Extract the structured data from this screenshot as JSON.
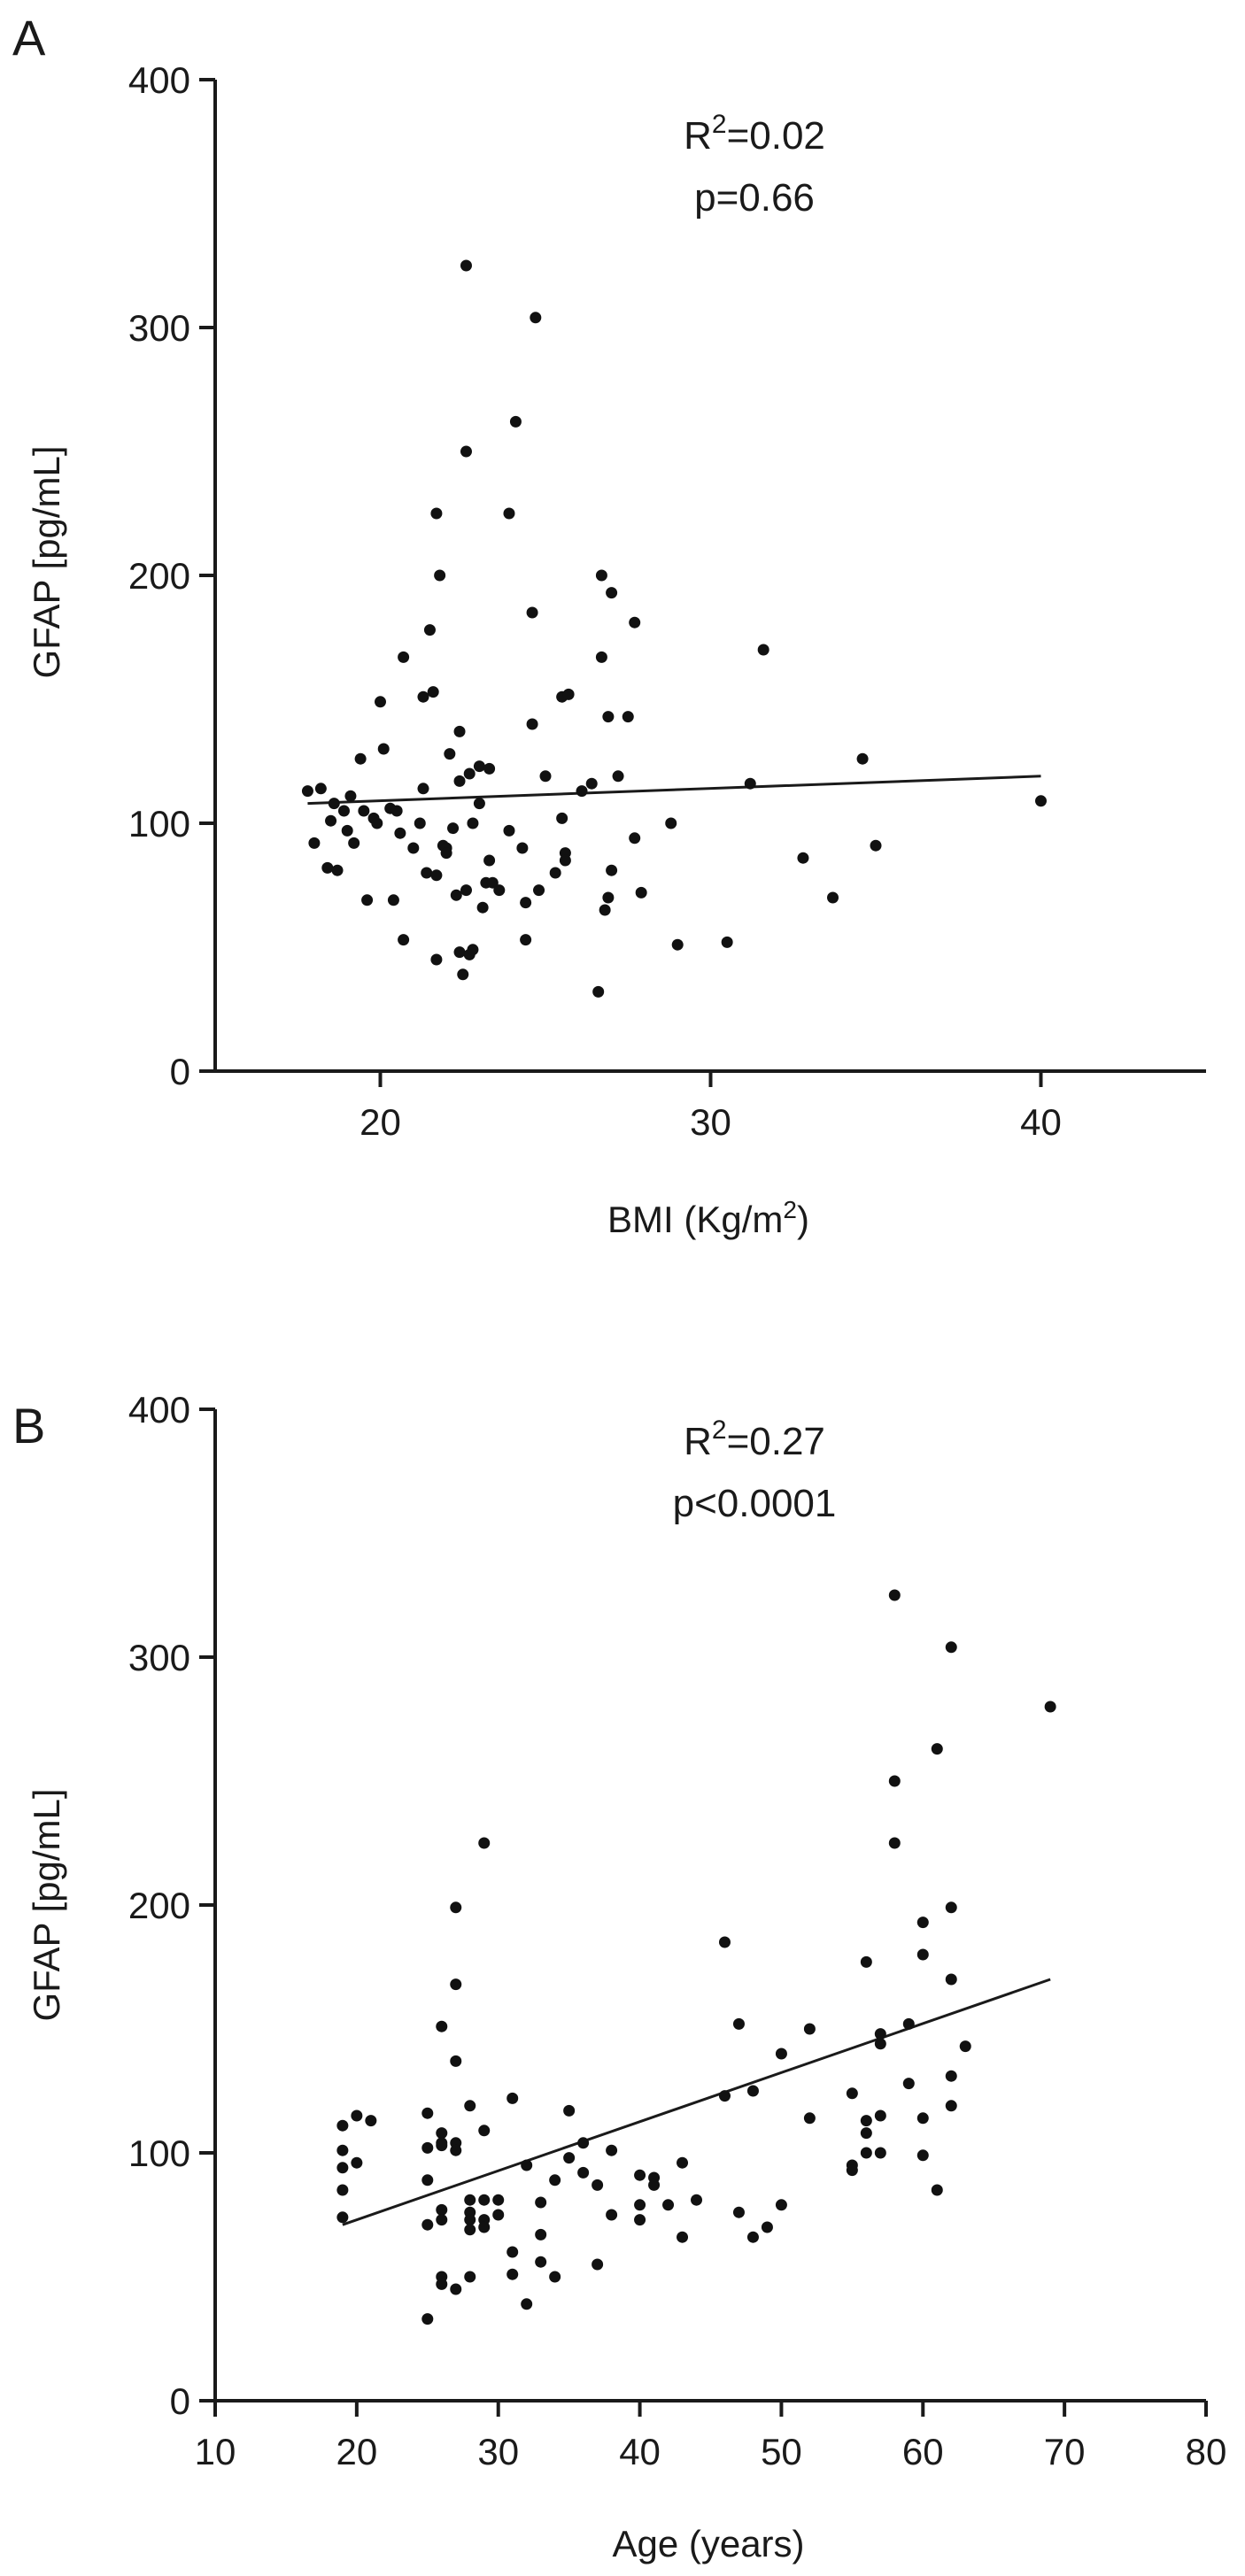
{
  "chart_data": [
    {
      "type": "scatter",
      "panel_label": "A",
      "xlabel": "BMI (Kg/m",
      "xlabel_sup": "2",
      "xlabel_suffix": ")",
      "ylabel": "GFAP [pg/mL]",
      "xlim": [
        15,
        45
      ],
      "ylim": [
        0,
        400
      ],
      "xticks": [
        20,
        30,
        40
      ],
      "yticks": [
        0,
        100,
        200,
        300,
        400
      ],
      "stat_r2_prefix": "R",
      "stat_r2_sup": "2",
      "stat_r2_value": "=0.02",
      "stat_p": "p=0.66",
      "fit_line": {
        "x": [
          17.8,
          40.0
        ],
        "y": [
          108,
          119
        ]
      },
      "points": [
        [
          17.8,
          113
        ],
        [
          18.2,
          114
        ],
        [
          18.0,
          92
        ],
        [
          18.5,
          101
        ],
        [
          18.4,
          82
        ],
        [
          18.7,
          81
        ],
        [
          18.6,
          108
        ],
        [
          18.9,
          105
        ],
        [
          19.0,
          97
        ],
        [
          19.1,
          111
        ],
        [
          19.2,
          92
        ],
        [
          19.4,
          126
        ],
        [
          19.5,
          105
        ],
        [
          19.6,
          69
        ],
        [
          19.8,
          102
        ],
        [
          19.9,
          100
        ],
        [
          20.0,
          149
        ],
        [
          20.1,
          130
        ],
        [
          20.3,
          106
        ],
        [
          20.4,
          69
        ],
        [
          20.5,
          105
        ],
        [
          20.6,
          96
        ],
        [
          20.7,
          53
        ],
        [
          20.7,
          167
        ],
        [
          21.0,
          90
        ],
        [
          21.2,
          100
        ],
        [
          21.3,
          151
        ],
        [
          21.3,
          114
        ],
        [
          21.4,
          80
        ],
        [
          21.5,
          178
        ],
        [
          21.6,
          153
        ],
        [
          21.7,
          225
        ],
        [
          21.7,
          45
        ],
        [
          21.7,
          79
        ],
        [
          21.8,
          200
        ],
        [
          21.9,
          91
        ],
        [
          22.0,
          90
        ],
        [
          22.0,
          88
        ],
        [
          22.1,
          128
        ],
        [
          22.2,
          98
        ],
        [
          22.3,
          71
        ],
        [
          22.4,
          48
        ],
        [
          22.4,
          117
        ],
        [
          22.4,
          137
        ],
        [
          22.5,
          39
        ],
        [
          22.6,
          325
        ],
        [
          22.6,
          250
        ],
        [
          22.6,
          73
        ],
        [
          22.7,
          47
        ],
        [
          22.7,
          120
        ],
        [
          22.8,
          49
        ],
        [
          22.8,
          100
        ],
        [
          23.0,
          123
        ],
        [
          23.0,
          108
        ],
        [
          23.1,
          66
        ],
        [
          23.2,
          76
        ],
        [
          23.3,
          122
        ],
        [
          23.3,
          85
        ],
        [
          23.4,
          76
        ],
        [
          23.6,
          73
        ],
        [
          23.9,
          225
        ],
        [
          23.9,
          97
        ],
        [
          24.1,
          262
        ],
        [
          24.3,
          90
        ],
        [
          24.4,
          68
        ],
        [
          24.4,
          53
        ],
        [
          24.7,
          304
        ],
        [
          24.6,
          140
        ],
        [
          24.6,
          185
        ],
        [
          24.8,
          73
        ],
        [
          25.0,
          119
        ],
        [
          25.3,
          80
        ],
        [
          25.5,
          102
        ],
        [
          25.5,
          151
        ],
        [
          25.7,
          152
        ],
        [
          25.6,
          88
        ],
        [
          25.6,
          85
        ],
        [
          26.1,
          113
        ],
        [
          26.4,
          116
        ],
        [
          26.6,
          32
        ],
        [
          26.7,
          200
        ],
        [
          26.7,
          167
        ],
        [
          26.8,
          65
        ],
        [
          26.9,
          143
        ],
        [
          26.9,
          70
        ],
        [
          27.0,
          193
        ],
        [
          27.0,
          81
        ],
        [
          27.2,
          119
        ],
        [
          27.5,
          143
        ],
        [
          27.7,
          181
        ],
        [
          27.7,
          94
        ],
        [
          27.9,
          72
        ],
        [
          28.8,
          100
        ],
        [
          29.0,
          51
        ],
        [
          30.5,
          52
        ],
        [
          31.2,
          116
        ],
        [
          31.6,
          170
        ],
        [
          32.8,
          86
        ],
        [
          33.7,
          70
        ],
        [
          34.6,
          126
        ],
        [
          35.0,
          91
        ],
        [
          40.0,
          109
        ]
      ]
    },
    {
      "type": "scatter",
      "panel_label": "B",
      "xlabel": "Age (years)",
      "ylabel": "GFAP [pg/mL]",
      "xlim": [
        10,
        80
      ],
      "ylim": [
        0,
        400
      ],
      "xticks": [
        10,
        20,
        30,
        40,
        50,
        60,
        70,
        80
      ],
      "yticks": [
        0,
        100,
        200,
        300,
        400
      ],
      "stat_r2_prefix": "R",
      "stat_r2_sup": "2",
      "stat_r2_value": "=0.27",
      "stat_p": "p<0.0001",
      "fit_line": {
        "x": [
          19,
          69
        ],
        "y": [
          71,
          170
        ]
      },
      "points": [
        [
          19,
          111
        ],
        [
          19,
          101
        ],
        [
          19,
          94
        ],
        [
          19,
          85
        ],
        [
          19,
          74
        ],
        [
          20,
          115
        ],
        [
          20,
          96
        ],
        [
          21,
          113
        ],
        [
          25,
          116
        ],
        [
          25,
          102
        ],
        [
          25,
          89
        ],
        [
          25,
          71
        ],
        [
          25,
          33
        ],
        [
          26,
          108
        ],
        [
          26,
          104
        ],
        [
          26,
          103
        ],
        [
          26,
          77
        ],
        [
          26,
          73
        ],
        [
          26,
          50
        ],
        [
          26,
          47
        ],
        [
          26,
          151
        ],
        [
          27,
          104
        ],
        [
          27,
          101
        ],
        [
          27,
          137
        ],
        [
          27,
          168
        ],
        [
          27,
          199
        ],
        [
          27,
          45
        ],
        [
          28,
          81
        ],
        [
          28,
          76
        ],
        [
          28,
          73
        ],
        [
          28,
          69
        ],
        [
          28,
          50
        ],
        [
          28,
          119
        ],
        [
          29,
          225
        ],
        [
          29,
          109
        ],
        [
          29,
          81
        ],
        [
          29,
          73
        ],
        [
          29,
          70
        ],
        [
          30,
          81
        ],
        [
          30,
          75
        ],
        [
          31,
          122
        ],
        [
          31,
          60
        ],
        [
          31,
          51
        ],
        [
          32,
          95
        ],
        [
          32,
          39
        ],
        [
          33,
          67
        ],
        [
          33,
          80
        ],
        [
          33,
          56
        ],
        [
          34,
          89
        ],
        [
          34,
          50
        ],
        [
          35,
          98
        ],
        [
          35,
          117
        ],
        [
          36,
          104
        ],
        [
          36,
          92
        ],
        [
          37,
          55
        ],
        [
          37,
          87
        ],
        [
          38,
          101
        ],
        [
          38,
          75
        ],
        [
          40,
          91
        ],
        [
          40,
          79
        ],
        [
          40,
          73
        ],
        [
          41,
          90
        ],
        [
          41,
          87
        ],
        [
          42,
          79
        ],
        [
          43,
          96
        ],
        [
          43,
          66
        ],
        [
          44,
          81
        ],
        [
          46,
          185
        ],
        [
          46,
          123
        ],
        [
          47,
          152
        ],
        [
          47,
          76
        ],
        [
          48,
          125
        ],
        [
          48,
          66
        ],
        [
          49,
          70
        ],
        [
          50,
          140
        ],
        [
          50,
          79
        ],
        [
          52,
          150
        ],
        [
          52,
          114
        ],
        [
          55,
          124
        ],
        [
          55,
          95
        ],
        [
          55,
          93
        ],
        [
          56,
          177
        ],
        [
          56,
          113
        ],
        [
          56,
          108
        ],
        [
          56,
          100
        ],
        [
          57,
          144
        ],
        [
          57,
          148
        ],
        [
          57,
          115
        ],
        [
          57,
          100
        ],
        [
          58,
          325
        ],
        [
          58,
          250
        ],
        [
          58,
          225
        ],
        [
          59,
          152
        ],
        [
          59,
          128
        ],
        [
          60,
          193
        ],
        [
          60,
          180
        ],
        [
          60,
          114
        ],
        [
          60,
          99
        ],
        [
          61,
          263
        ],
        [
          61,
          85
        ],
        [
          62,
          304
        ],
        [
          62,
          170
        ],
        [
          62,
          131
        ],
        [
          62,
          119
        ],
        [
          62,
          199
        ],
        [
          63,
          143
        ],
        [
          69,
          280
        ]
      ]
    }
  ]
}
